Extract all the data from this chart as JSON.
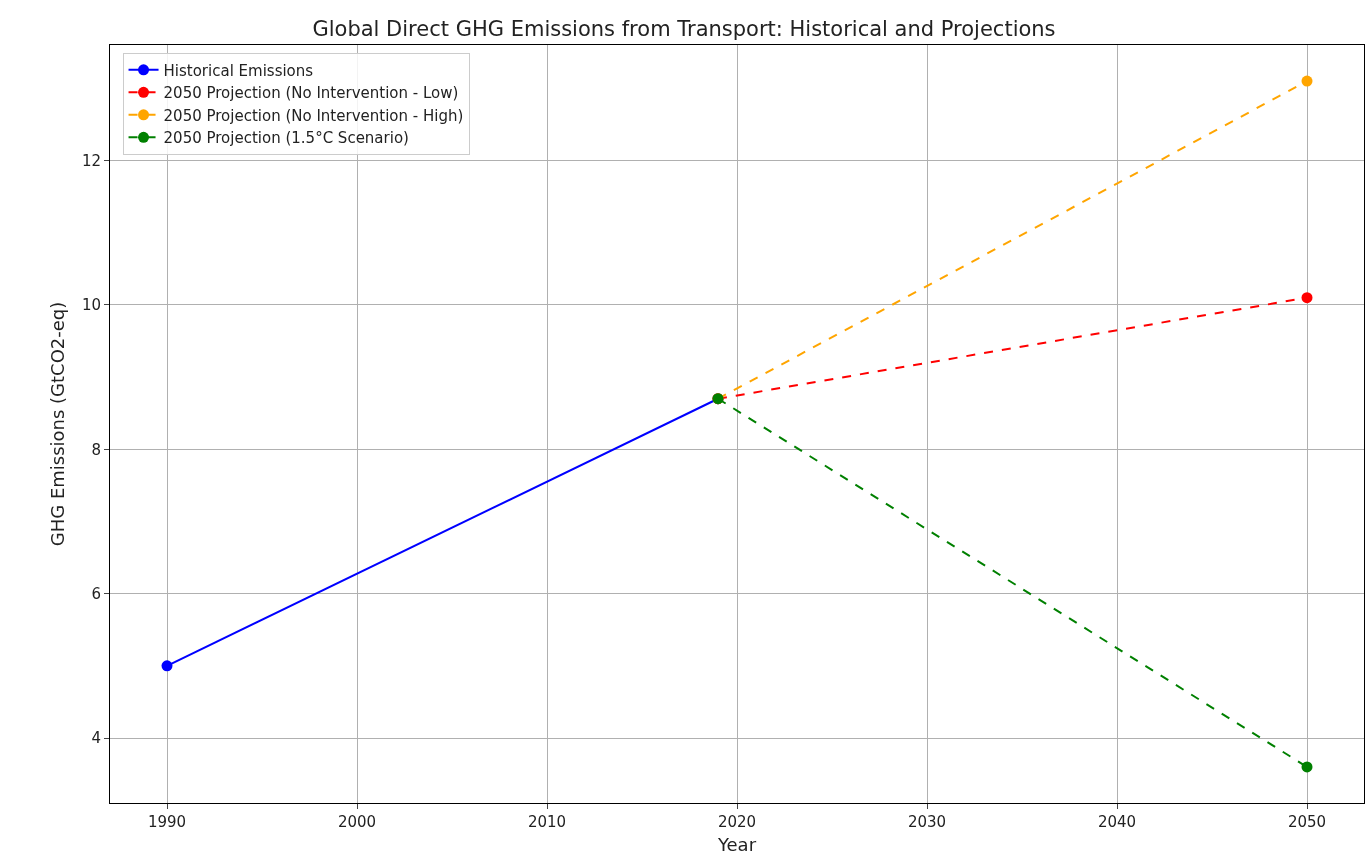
{
  "chart_data": {
    "type": "line",
    "title": "Global Direct GHG Emissions from Transport: Historical and Projections",
    "xlabel": "Year",
    "ylabel": "GHG Emissions (GtCO2-eq)",
    "series": [
      {
        "name": "Historical Emissions",
        "color": "#0000ff",
        "x": [
          1990,
          2019
        ],
        "values": [
          5.0,
          8.7
        ],
        "line_style": "solid"
      },
      {
        "name": "2050 Projection (No Intervention - Low)",
        "color": "#ff0000",
        "x": [
          2019,
          2050
        ],
        "values": [
          8.7,
          10.1
        ],
        "line_style": "dashed"
      },
      {
        "name": "2050 Projection (No Intervention - High)",
        "color": "#ffa500",
        "x": [
          2019,
          2050
        ],
        "values": [
          8.7,
          13.1
        ],
        "line_style": "dashed"
      },
      {
        "name": "2050 Projection (1.5°C Scenario)",
        "color": "#008000",
        "x": [
          2019,
          2050
        ],
        "values": [
          8.7,
          3.6
        ],
        "line_style": "dashed"
      }
    ],
    "xlim": [
      1987,
      2053
    ],
    "xticks": [
      1990,
      2000,
      2010,
      2020,
      2030,
      2040,
      2050
    ],
    "ylim": [
      3.1,
      13.6
    ],
    "yticks": [
      4,
      6,
      8,
      10,
      12
    ],
    "grid": true,
    "legend": "top left",
    "marker": "circle"
  }
}
